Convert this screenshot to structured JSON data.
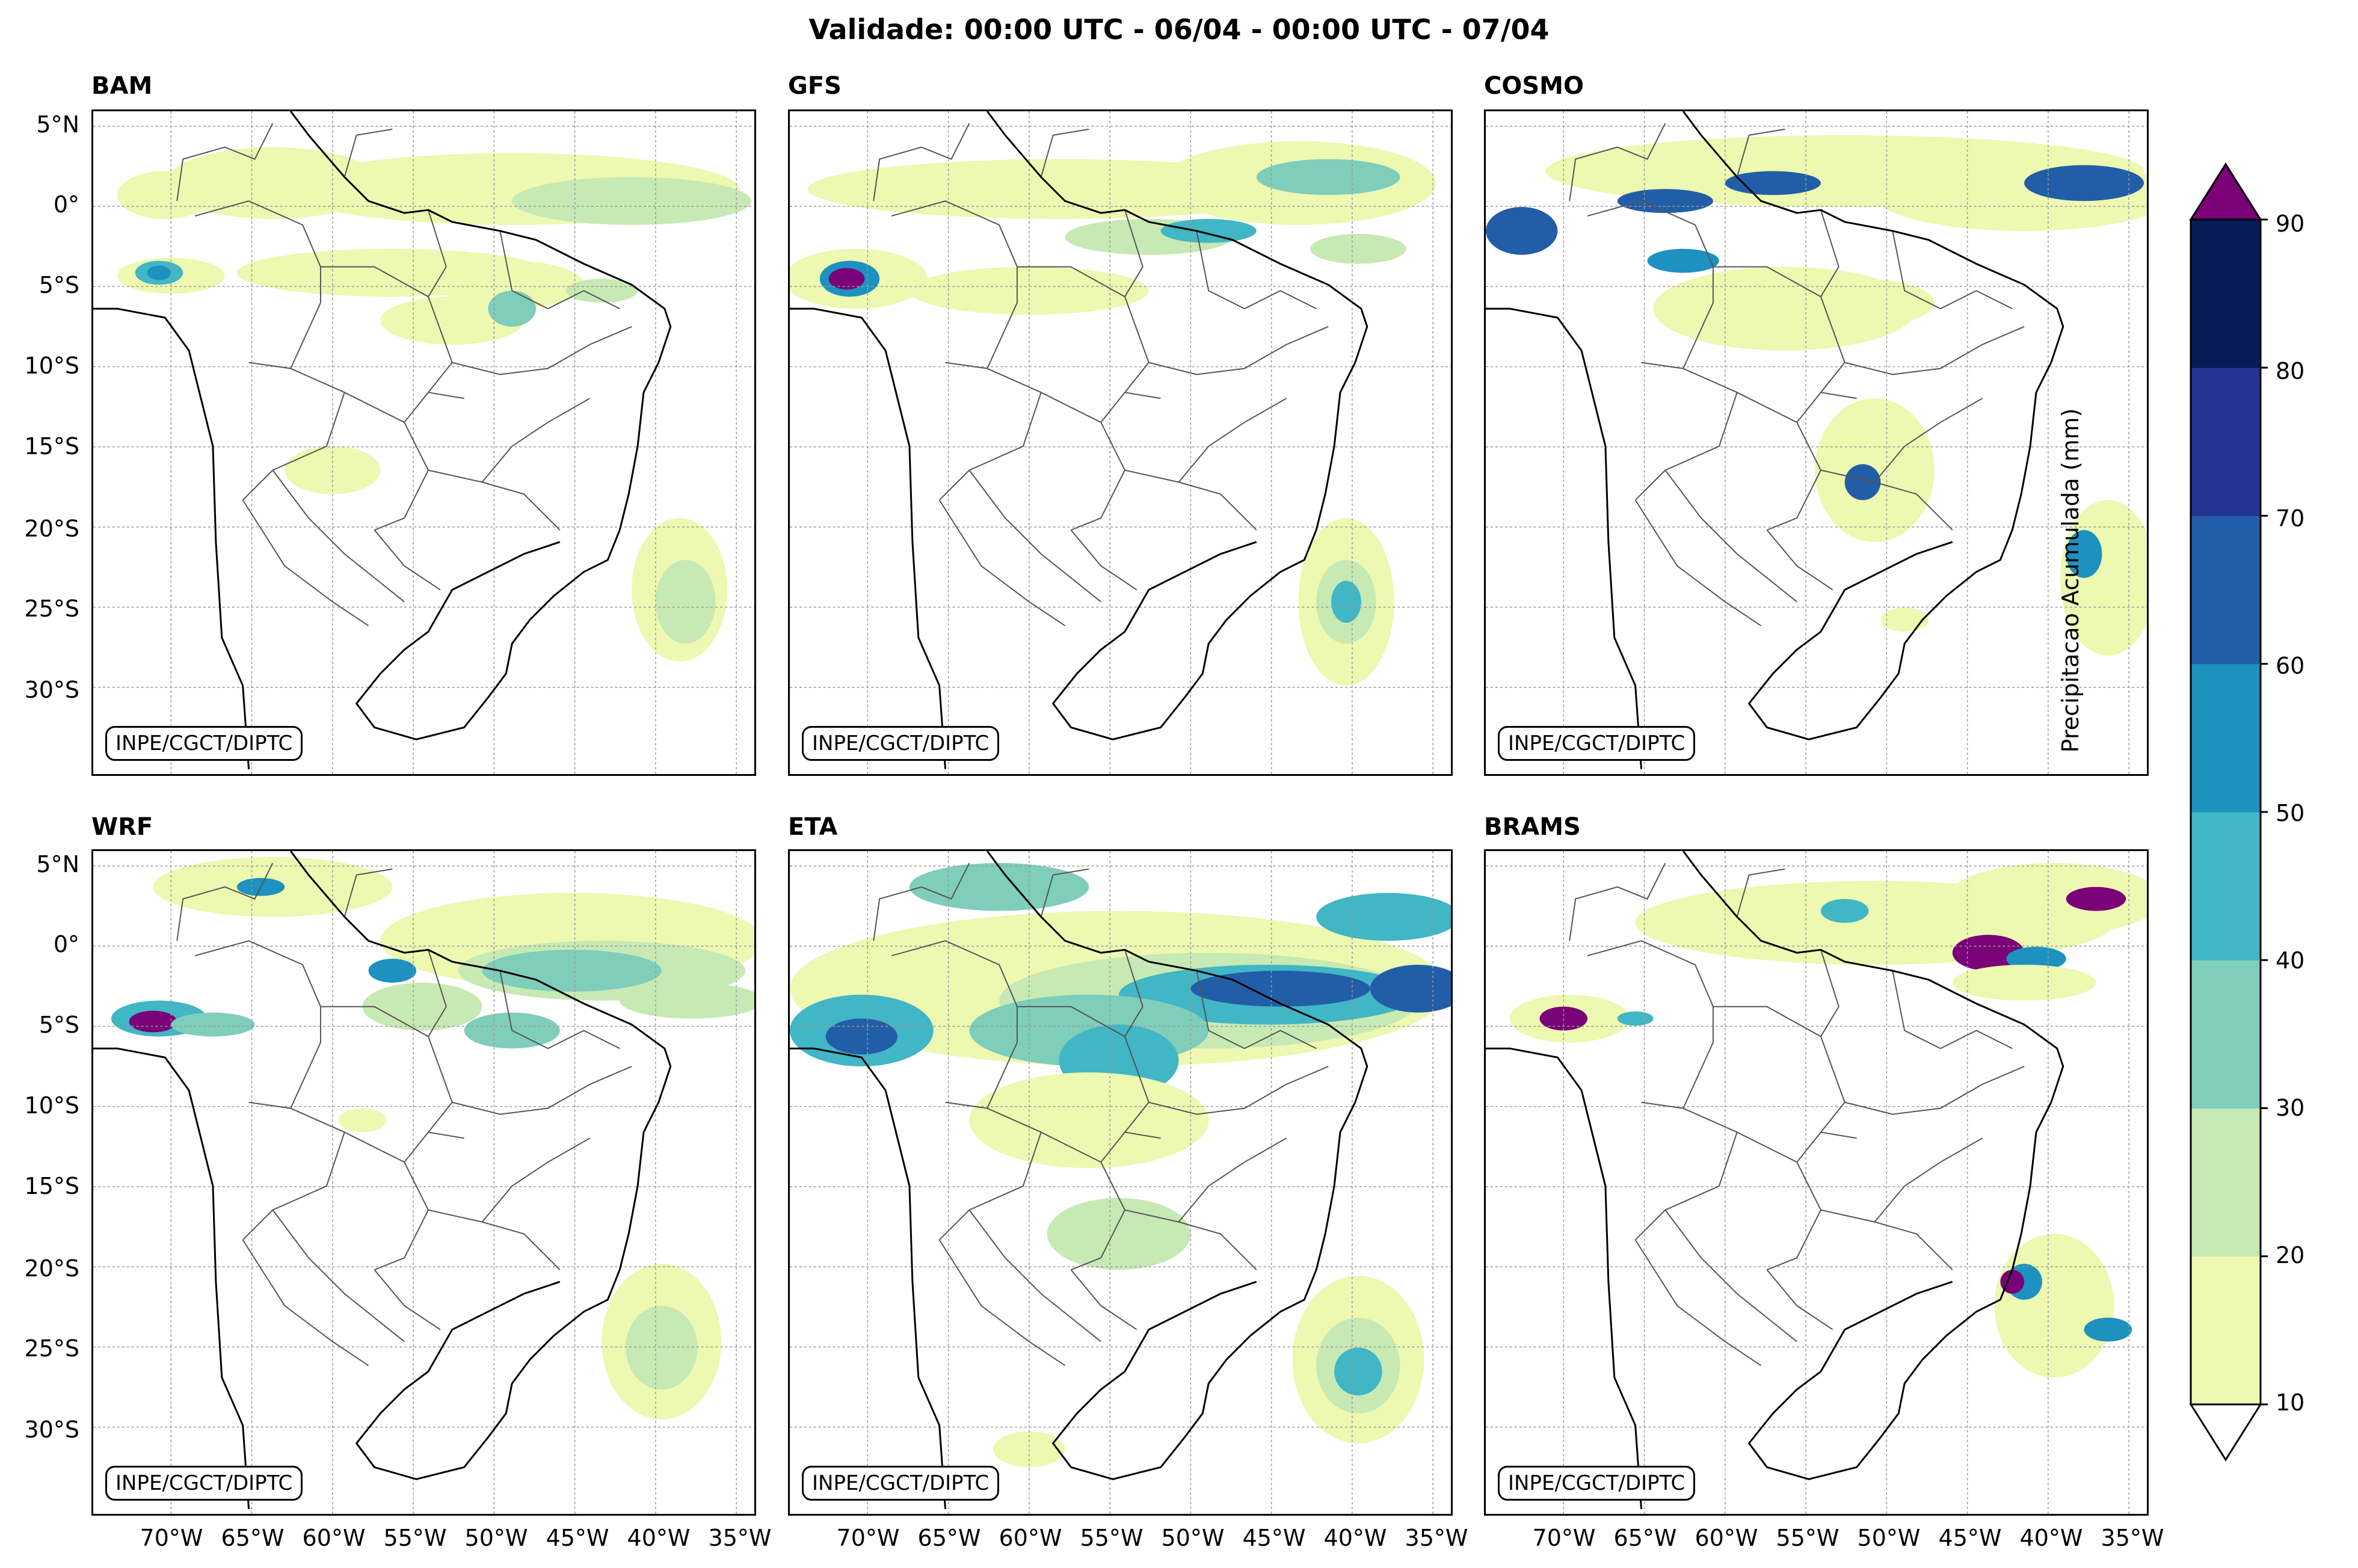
{
  "title": "Validade: 00:00 UTC - 06/04 - 00:00 UTC - 07/04",
  "credit": "INPE/CGCT/DIPTC",
  "panels": [
    {
      "name": "BAM"
    },
    {
      "name": "GFS"
    },
    {
      "name": "COSMO"
    },
    {
      "name": "WRF"
    },
    {
      "name": "ETA"
    },
    {
      "name": "BRAMS"
    }
  ],
  "lat_labels": [
    "5°N",
    "0°",
    "5°S",
    "10°S",
    "15°S",
    "20°S",
    "25°S",
    "30°S"
  ],
  "lon_labels": [
    "70°W",
    "65°W",
    "60°W",
    "55°W",
    "50°W",
    "45°W",
    "40°W",
    "35°W"
  ],
  "colorbar": {
    "label": "Precipitacao Acumulada (mm)",
    "ticks": [
      "10",
      "20",
      "30",
      "40",
      "50",
      "60",
      "70",
      "80",
      "90"
    ],
    "colors": [
      "#edf8b1",
      "#c7e9b4",
      "#7fcdbb",
      "#41b6c4",
      "#1d91c0",
      "#225ea8",
      "#253494",
      "#081d58"
    ],
    "over_color": "#7a0177",
    "under_color": "#ffffff"
  }
}
